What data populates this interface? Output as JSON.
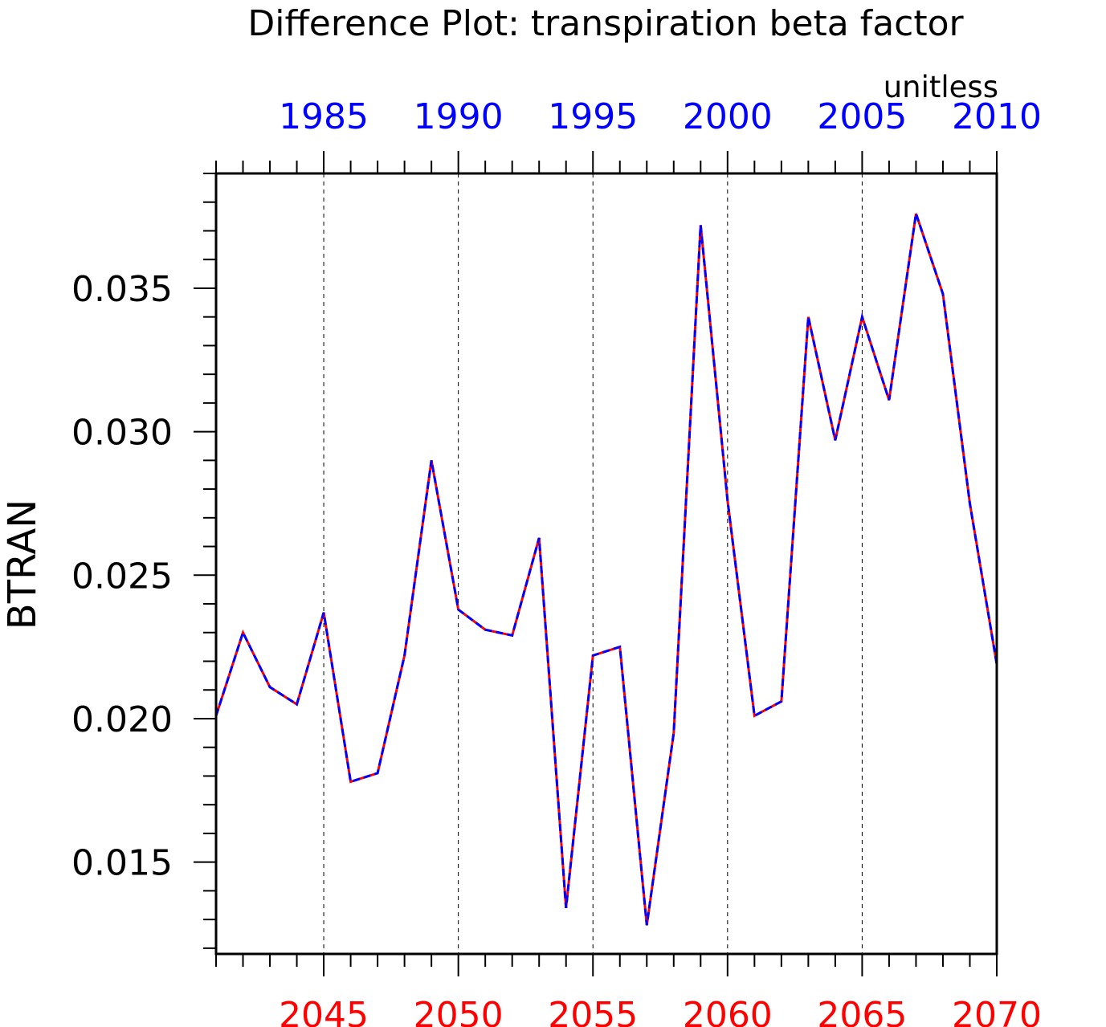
{
  "chart_data": {
    "type": "line",
    "title": "Difference Plot: transpiration beta factor",
    "units": "unitless",
    "ylabel": "BTRAN",
    "xlabel": "",
    "ylim": [
      0.0118,
      0.039
    ],
    "bottom_axis": {
      "range": [
        2041,
        2070
      ],
      "tick_labels": [
        "2045",
        "2050",
        "2055",
        "2060",
        "2065",
        "2070"
      ],
      "color": "#ff0000"
    },
    "top_axis": {
      "range": [
        1981,
        2010
      ],
      "tick_labels": [
        "1985",
        "1990",
        "1995",
        "2000",
        "2005",
        "2010"
      ],
      "color": "#0000ff"
    },
    "y_tick_labels": [
      "0.015",
      "0.020",
      "0.025",
      "0.030",
      "0.035"
    ],
    "vertical_grid": true,
    "x": [
      2041,
      2042,
      2043,
      2044,
      2045,
      2046,
      2047,
      2048,
      2049,
      2050,
      2051,
      2052,
      2053,
      2054,
      2055,
      2056,
      2057,
      2058,
      2059,
      2060,
      2061,
      2062,
      2063,
      2064,
      2065,
      2066,
      2067,
      2068,
      2069,
      2070
    ],
    "series": [
      {
        "values": [
          0.0201,
          0.023,
          0.0211,
          0.0205,
          0.0237,
          0.0178,
          0.0181,
          0.0222,
          0.029,
          0.0238,
          0.0231,
          0.0229,
          0.0263,
          0.0134,
          0.0222,
          0.0225,
          0.0128,
          0.0195,
          0.0372,
          0.0276,
          0.0201,
          0.0206,
          0.034,
          0.0297,
          0.034,
          0.0311,
          0.0376,
          0.0348,
          0.0275,
          0.0219
        ],
        "color": "#ff0000",
        "dash": "solid"
      },
      {
        "values": [
          0.0201,
          0.023,
          0.0211,
          0.0205,
          0.0237,
          0.0178,
          0.0181,
          0.0222,
          0.029,
          0.0238,
          0.0231,
          0.0229,
          0.0263,
          0.0134,
          0.0222,
          0.0225,
          0.0128,
          0.0195,
          0.0372,
          0.0276,
          0.0201,
          0.0206,
          0.034,
          0.0297,
          0.034,
          0.0311,
          0.0376,
          0.0348,
          0.0275,
          0.0219
        ],
        "color": "#0000ff",
        "dash": "dashed"
      }
    ]
  }
}
